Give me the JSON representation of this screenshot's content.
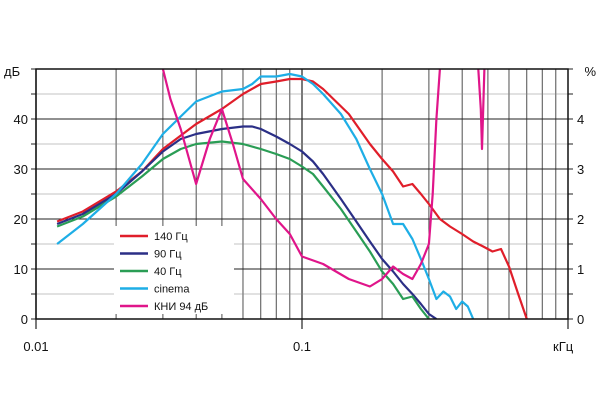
{
  "chart_data": {
    "type": "line",
    "title": "",
    "xlabel": "кГц",
    "ylabel": "дБ",
    "y2label": "%",
    "xscale": "log",
    "xlim": [
      0.01,
      1.0
    ],
    "ylim": [
      0,
      50
    ],
    "y2lim": [
      0,
      5
    ],
    "grid": true,
    "x_tick_labels": [
      {
        "value": 0.01,
        "label": "0.01"
      },
      {
        "value": 0.1,
        "label": "0.1"
      }
    ],
    "y_ticks": [
      {
        "value": 0,
        "label": "0"
      },
      {
        "value": 10,
        "label": "10"
      },
      {
        "value": 20,
        "label": "20"
      },
      {
        "value": 30,
        "label": "30"
      },
      {
        "value": 40,
        "label": "40"
      }
    ],
    "y2_ticks": [
      {
        "value": 0,
        "label": "0"
      },
      {
        "value": 1,
        "label": "1"
      },
      {
        "value": 2,
        "label": "2"
      },
      {
        "value": 3,
        "label": "3"
      },
      {
        "value": 4,
        "label": "4"
      }
    ],
    "legend_position": "bottom-left",
    "series": [
      {
        "name": "140 Гц",
        "color": "#e01e2a",
        "axis": "left",
        "points": [
          [
            0.012,
            19.5
          ],
          [
            0.015,
            21.5
          ],
          [
            0.02,
            25.5
          ],
          [
            0.025,
            29.5
          ],
          [
            0.03,
            34
          ],
          [
            0.04,
            39
          ],
          [
            0.05,
            42
          ],
          [
            0.06,
            45
          ],
          [
            0.07,
            47
          ],
          [
            0.08,
            47.5
          ],
          [
            0.09,
            48
          ],
          [
            0.1,
            48
          ],
          [
            0.11,
            47.5
          ],
          [
            0.12,
            46
          ],
          [
            0.15,
            41
          ],
          [
            0.18,
            35
          ],
          [
            0.2,
            32
          ],
          [
            0.22,
            29.5
          ],
          [
            0.24,
            26.5
          ],
          [
            0.26,
            27
          ],
          [
            0.28,
            25
          ],
          [
            0.3,
            23
          ],
          [
            0.33,
            20
          ],
          [
            0.36,
            18.5
          ],
          [
            0.4,
            17
          ],
          [
            0.44,
            15.5
          ],
          [
            0.48,
            14.5
          ],
          [
            0.52,
            13.5
          ],
          [
            0.56,
            14
          ],
          [
            0.6,
            10.5
          ],
          [
            0.65,
            5
          ],
          [
            0.7,
            0
          ]
        ]
      },
      {
        "name": "90 Гц",
        "color": "#2b2f86",
        "axis": "left",
        "points": [
          [
            0.012,
            19
          ],
          [
            0.015,
            21
          ],
          [
            0.02,
            25
          ],
          [
            0.025,
            29.5
          ],
          [
            0.03,
            33.5
          ],
          [
            0.035,
            36
          ],
          [
            0.04,
            37
          ],
          [
            0.05,
            38
          ],
          [
            0.06,
            38.5
          ],
          [
            0.065,
            38.5
          ],
          [
            0.07,
            38
          ],
          [
            0.08,
            36.5
          ],
          [
            0.09,
            35
          ],
          [
            0.1,
            33.5
          ],
          [
            0.11,
            31.5
          ],
          [
            0.12,
            29
          ],
          [
            0.14,
            24
          ],
          [
            0.16,
            19.5
          ],
          [
            0.18,
            15.5
          ],
          [
            0.2,
            12
          ],
          [
            0.22,
            9.5
          ],
          [
            0.24,
            7
          ],
          [
            0.26,
            5
          ],
          [
            0.28,
            3
          ],
          [
            0.3,
            1
          ],
          [
            0.32,
            0
          ]
        ]
      },
      {
        "name": "40 Гц",
        "color": "#2a9d55",
        "axis": "left",
        "points": [
          [
            0.012,
            18.5
          ],
          [
            0.015,
            20.5
          ],
          [
            0.02,
            24.5
          ],
          [
            0.025,
            28.5
          ],
          [
            0.03,
            32
          ],
          [
            0.035,
            34
          ],
          [
            0.04,
            35
          ],
          [
            0.05,
            35.5
          ],
          [
            0.06,
            35
          ],
          [
            0.07,
            34
          ],
          [
            0.08,
            33
          ],
          [
            0.09,
            32
          ],
          [
            0.1,
            30.5
          ],
          [
            0.11,
            29
          ],
          [
            0.12,
            26.5
          ],
          [
            0.14,
            22
          ],
          [
            0.16,
            17.5
          ],
          [
            0.18,
            13.5
          ],
          [
            0.2,
            9.5
          ],
          [
            0.22,
            7
          ],
          [
            0.24,
            4
          ],
          [
            0.26,
            4.5
          ],
          [
            0.28,
            2
          ],
          [
            0.3,
            0
          ]
        ]
      },
      {
        "name": "cinema",
        "color": "#1eaee6",
        "axis": "left",
        "points": [
          [
            0.012,
            15
          ],
          [
            0.015,
            19
          ],
          [
            0.02,
            25
          ],
          [
            0.025,
            31
          ],
          [
            0.03,
            37
          ],
          [
            0.035,
            40.5
          ],
          [
            0.04,
            43.5
          ],
          [
            0.05,
            45.5
          ],
          [
            0.06,
            46
          ],
          [
            0.065,
            47
          ],
          [
            0.07,
            48.5
          ],
          [
            0.08,
            48.5
          ],
          [
            0.09,
            49
          ],
          [
            0.1,
            48.5
          ],
          [
            0.11,
            47
          ],
          [
            0.12,
            45
          ],
          [
            0.14,
            41
          ],
          [
            0.16,
            36
          ],
          [
            0.18,
            30
          ],
          [
            0.2,
            25
          ],
          [
            0.22,
            19
          ],
          [
            0.24,
            19
          ],
          [
            0.26,
            16
          ],
          [
            0.28,
            12
          ],
          [
            0.3,
            8
          ],
          [
            0.32,
            4
          ],
          [
            0.34,
            5.5
          ],
          [
            0.36,
            4.5
          ],
          [
            0.38,
            2
          ],
          [
            0.4,
            3.5
          ],
          [
            0.42,
            2.5
          ],
          [
            0.44,
            0
          ]
        ]
      },
      {
        "name": "КНИ 94 дБ",
        "color": "#e0158a",
        "axis": "right",
        "points": [
          [
            0.03,
            5
          ],
          [
            0.032,
            4.4
          ],
          [
            0.035,
            3.8
          ],
          [
            0.04,
            2.7
          ],
          [
            0.045,
            3.6
          ],
          [
            0.05,
            4.2
          ],
          [
            0.055,
            3.5
          ],
          [
            0.06,
            2.8
          ],
          [
            0.07,
            2.4
          ],
          [
            0.08,
            2
          ],
          [
            0.09,
            1.7
          ],
          [
            0.1,
            1.25
          ],
          [
            0.12,
            1.1
          ],
          [
            0.15,
            0.8
          ],
          [
            0.18,
            0.65
          ],
          [
            0.2,
            0.8
          ],
          [
            0.22,
            1.05
          ],
          [
            0.24,
            0.9
          ],
          [
            0.26,
            0.8
          ],
          [
            0.28,
            1.1
          ],
          [
            0.3,
            1.5
          ],
          [
            0.31,
            2.5
          ],
          [
            0.32,
            4
          ],
          [
            0.33,
            5
          ]
        ],
        "extra_points": [
          [
            0.46,
            5
          ],
          [
            0.47,
            4.2
          ],
          [
            0.475,
            3.4
          ],
          [
            0.48,
            4.2
          ],
          [
            0.485,
            5
          ]
        ]
      }
    ]
  }
}
